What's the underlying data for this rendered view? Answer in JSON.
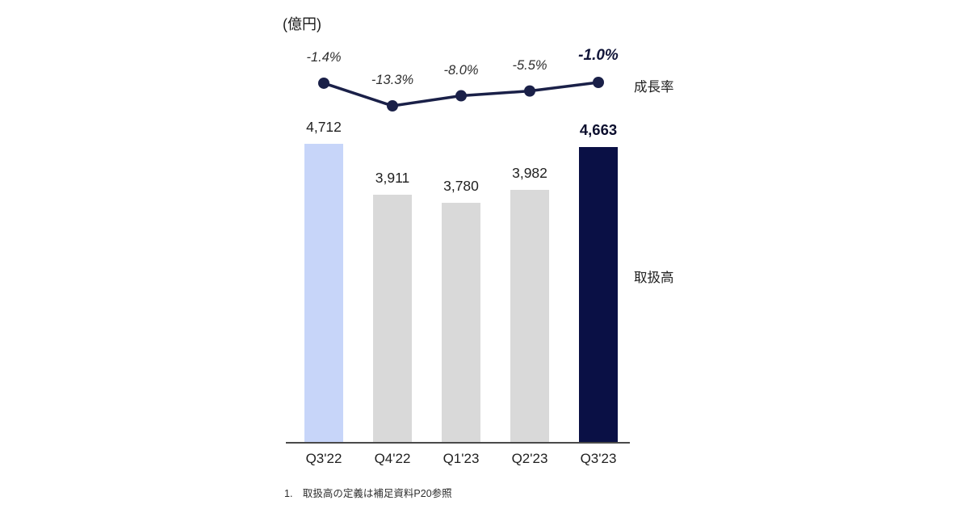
{
  "chart_data": {
    "type": "bar+line",
    "categories": [
      "Q3'22",
      "Q4'22",
      "Q1'23",
      "Q2'23",
      "Q3'23"
    ],
    "series": [
      {
        "name": "取扱高",
        "type": "bar",
        "values": [
          4712,
          3911,
          3780,
          3982,
          4663
        ],
        "labels": [
          "4,712",
          "3,911",
          "3,780",
          "3,982",
          "4,663"
        ]
      },
      {
        "name": "成長率",
        "type": "line",
        "values": [
          -1.4,
          -13.3,
          -8.0,
          -5.5,
          -1.0
        ],
        "labels": [
          "-1.4%",
          "-13.3%",
          "-8.0%",
          "-5.5%",
          "-1.0%"
        ]
      }
    ],
    "bar_colors": [
      "#c7d5f9",
      "#d9d9d9",
      "#d9d9d9",
      "#d9d9d9",
      "#0a1045"
    ],
    "line_color": "#1a2048",
    "emphasis_index": 4,
    "ylim": [
      0,
      4712
    ],
    "grid": false,
    "legend_position": "right"
  },
  "labels": {
    "unit": "(億円)",
    "growth_rate": "成長率",
    "volume": "取扱高",
    "footnote": "1.　取扱高の定義は補足資料P20参照"
  }
}
